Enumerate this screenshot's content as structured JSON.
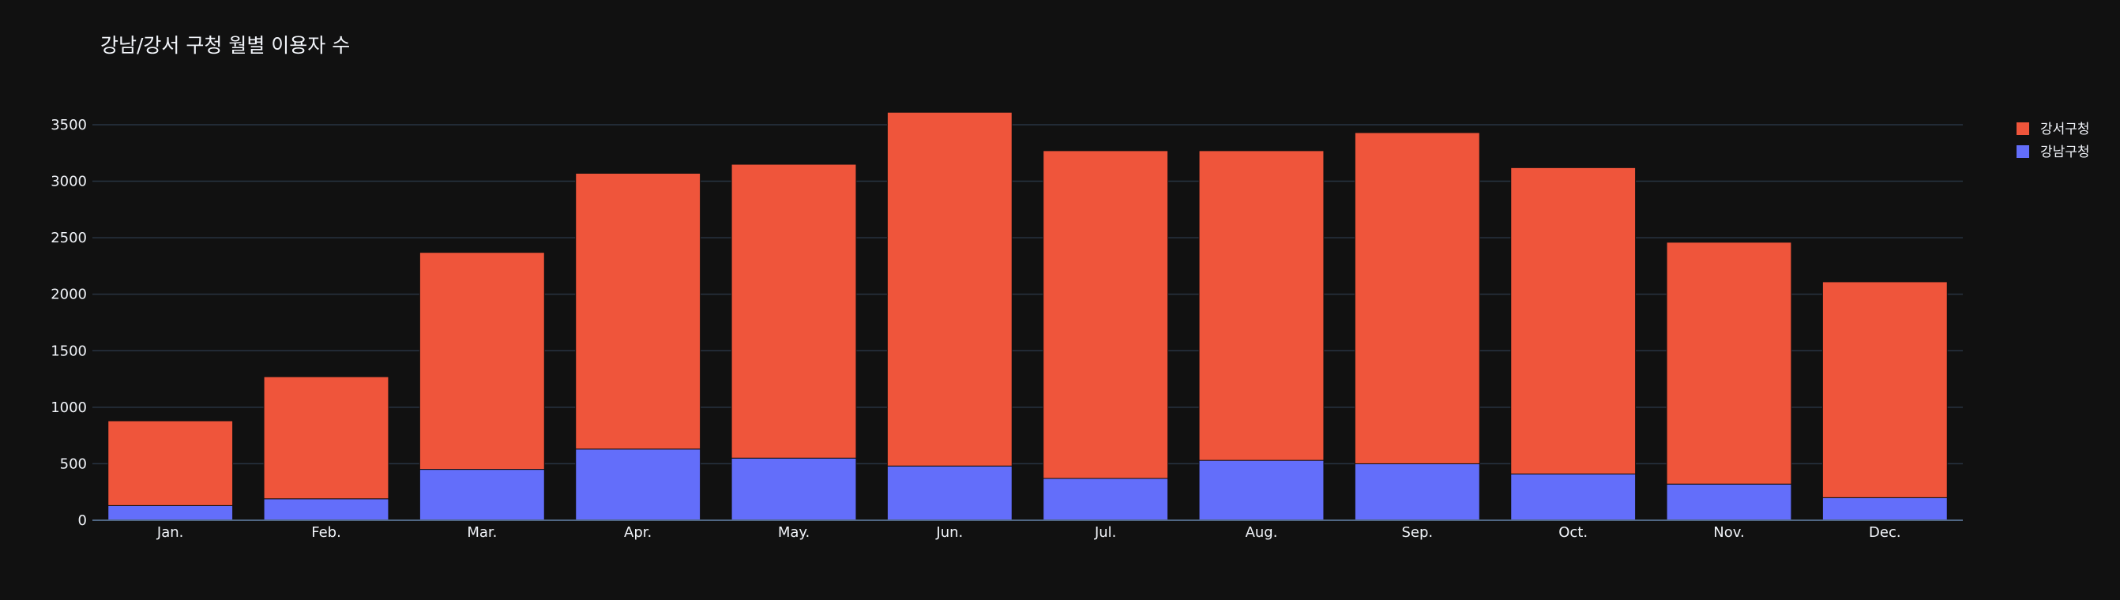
{
  "chart_data": {
    "type": "bar",
    "barmode": "stack",
    "title": "강남/강서 구청 월별 이용자 수",
    "xlabel": "",
    "ylabel": "",
    "categories": [
      "Jan.",
      "Feb.",
      "Mar.",
      "Apr.",
      "May.",
      "Jun.",
      "Jul.",
      "Aug.",
      "Sep.",
      "Oct.",
      "Nov.",
      "Dec."
    ],
    "series": [
      {
        "name": "강남구청",
        "color": "#636efa",
        "values": [
          130,
          190,
          450,
          630,
          550,
          480,
          370,
          530,
          500,
          410,
          320,
          200
        ]
      },
      {
        "name": "강서구청",
        "color": "#ef553b",
        "values": [
          750,
          1080,
          1920,
          2440,
          2600,
          3130,
          2900,
          2740,
          2930,
          2710,
          2140,
          1910
        ]
      }
    ],
    "legend_order": [
      "강서구청",
      "강남구청"
    ],
    "ylim": [
      0,
      3800
    ],
    "yticks": [
      0,
      500,
      1000,
      1500,
      2000,
      2500,
      3000,
      3500
    ],
    "grid": true,
    "legend_position": "top-right",
    "background": "#111111",
    "grid_color": "#283442",
    "text_color": "#f2f5fa"
  }
}
